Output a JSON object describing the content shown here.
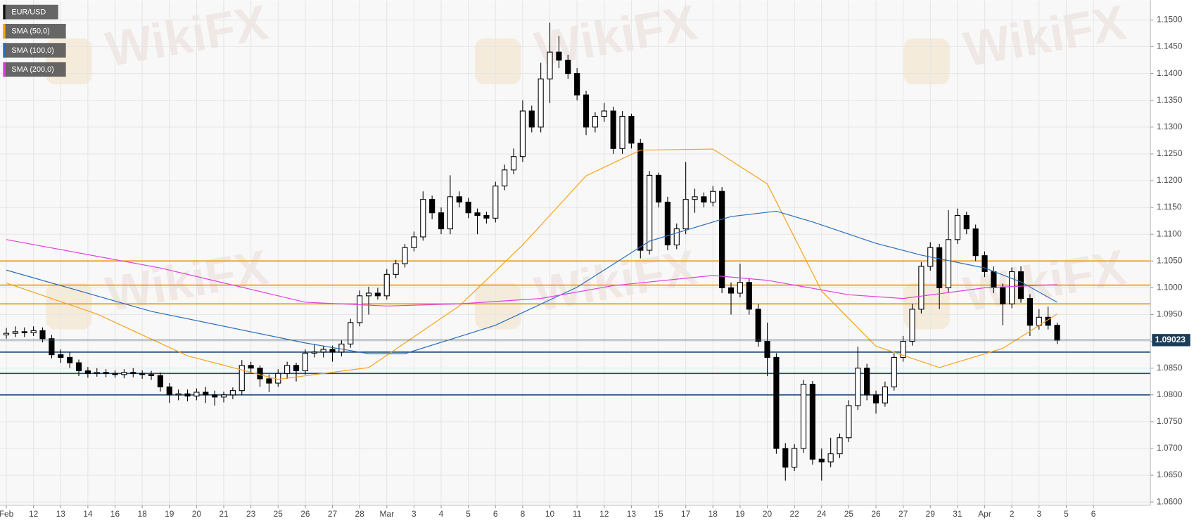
{
  "chart_data": {
    "type": "candlestick",
    "legend": "top-left",
    "grid": true,
    "watermark": "WikiFX",
    "xlim": [
      -0.7,
      126.3
    ],
    "ylim": [
      1.0594,
      1.1537
    ],
    "xticks": [
      {
        "value": 0,
        "label": "Feb"
      },
      {
        "value": 3,
        "label": "12"
      },
      {
        "value": 6,
        "label": "13"
      },
      {
        "value": 9,
        "label": "14"
      },
      {
        "value": 12,
        "label": "16"
      },
      {
        "value": 15,
        "label": "18"
      },
      {
        "value": 18,
        "label": "19"
      },
      {
        "value": 21,
        "label": "20"
      },
      {
        "value": 24,
        "label": "21"
      },
      {
        "value": 27,
        "label": "23"
      },
      {
        "value": 30,
        "label": "25"
      },
      {
        "value": 33,
        "label": "26"
      },
      {
        "value": 36,
        "label": "27"
      },
      {
        "value": 39,
        "label": "28"
      },
      {
        "value": 42,
        "label": "Mar"
      },
      {
        "value": 45,
        "label": "3"
      },
      {
        "value": 48,
        "label": "4"
      },
      {
        "value": 51,
        "label": "5"
      },
      {
        "value": 54,
        "label": "6"
      },
      {
        "value": 57,
        "label": "8"
      },
      {
        "value": 60,
        "label": "10"
      },
      {
        "value": 63,
        "label": "11"
      },
      {
        "value": 66,
        "label": "12"
      },
      {
        "value": 69,
        "label": "13"
      },
      {
        "value": 72,
        "label": "15"
      },
      {
        "value": 75,
        "label": "17"
      },
      {
        "value": 78,
        "label": "18"
      },
      {
        "value": 81,
        "label": "19"
      },
      {
        "value": 84,
        "label": "20"
      },
      {
        "value": 87,
        "label": "22"
      },
      {
        "value": 90,
        "label": "24"
      },
      {
        "value": 93,
        "label": "25"
      },
      {
        "value": 96,
        "label": "26"
      },
      {
        "value": 99,
        "label": "27"
      },
      {
        "value": 102,
        "label": "29"
      },
      {
        "value": 105,
        "label": "31"
      },
      {
        "value": 108,
        "label": "Apr"
      },
      {
        "value": 111,
        "label": "2"
      },
      {
        "value": 114,
        "label": "3"
      },
      {
        "value": 117,
        "label": "5"
      },
      {
        "value": 120,
        "label": "6"
      }
    ],
    "yticks": [
      {
        "value": 1.06,
        "label": "1.0600"
      },
      {
        "value": 1.065,
        "label": "1.0650"
      },
      {
        "value": 1.07,
        "label": "1.0700"
      },
      {
        "value": 1.075,
        "label": "1.0750"
      },
      {
        "value": 1.08,
        "label": "1.0800"
      },
      {
        "value": 1.085,
        "label": "1.0850"
      },
      {
        "value": 1.09,
        "label": "1.0900"
      },
      {
        "value": 1.095,
        "label": "1.0950"
      },
      {
        "value": 1.1,
        "label": "1.1000"
      },
      {
        "value": 1.105,
        "label": "1.1050"
      },
      {
        "value": 1.11,
        "label": "1.1100"
      },
      {
        "value": 1.115,
        "label": "1.1150"
      },
      {
        "value": 1.12,
        "label": "1.1200"
      },
      {
        "value": 1.125,
        "label": "1.1250"
      },
      {
        "value": 1.13,
        "label": "1.1300"
      },
      {
        "value": 1.135,
        "label": "1.1350"
      },
      {
        "value": 1.14,
        "label": "1.1400"
      },
      {
        "value": 1.145,
        "label": "1.1450"
      },
      {
        "value": 1.15,
        "label": "1.1500"
      }
    ],
    "last_price": 1.09023,
    "hlines": [
      {
        "value": 1.105,
        "color": "#f39c12"
      },
      {
        "value": 1.1005,
        "color": "#f39c12"
      },
      {
        "value": 1.097,
        "color": "#f39c12"
      },
      {
        "value": 1.088,
        "color": "#1f4e79"
      },
      {
        "value": 1.084,
        "color": "#1f4e79"
      },
      {
        "value": 1.08,
        "color": "#1f4e79"
      }
    ],
    "series": [
      {
        "name": "EUR/USD",
        "type": "candlestick",
        "color": "#000000",
        "open": [
          1.0912,
          1.0915,
          1.0918,
          1.0916,
          1.092,
          1.0905,
          1.0875,
          1.087,
          1.086,
          1.0845,
          1.084,
          1.0842,
          1.084,
          1.0838,
          1.0842,
          1.084,
          1.0838,
          1.0836,
          1.0815,
          1.08,
          1.0802,
          1.0798,
          1.0805,
          1.08,
          1.0796,
          1.08,
          1.0808,
          1.0855,
          1.085,
          1.083,
          1.0822,
          1.084,
          1.0855,
          1.0845,
          1.0878,
          1.088,
          1.0885,
          1.088,
          1.0895,
          1.0935,
          1.0985,
          1.099,
          1.0985,
          1.1025,
          1.1045,
          1.1075,
          1.1095,
          1.1165,
          1.114,
          1.111,
          1.117,
          1.116,
          1.114,
          1.1135,
          1.113,
          1.119,
          1.122,
          1.1245,
          1.133,
          1.13,
          1.139,
          1.144,
          1.1425,
          1.14,
          1.136,
          1.13,
          1.132,
          1.133,
          1.126,
          1.132,
          1.127,
          1.107,
          1.121,
          1.116,
          1.108,
          1.111,
          1.1165,
          1.117,
          1.116,
          1.118,
          1.1,
          1.099,
          1.101,
          1.096,
          1.09,
          1.087,
          1.07,
          1.0665,
          1.07,
          1.082,
          1.068,
          1.0675,
          1.069,
          1.072,
          1.078,
          1.085,
          1.08,
          1.0785,
          1.0815,
          1.087,
          1.09,
          1.096,
          1.104,
          1.1075,
          1.1,
          1.109,
          1.1135,
          1.111,
          1.106,
          1.103,
          1.1,
          1.097,
          1.103,
          1.098,
          1.093,
          1.0945,
          1.093
        ],
        "high": [
          1.0925,
          1.0928,
          1.0926,
          1.0928,
          1.0926,
          1.0912,
          1.0885,
          1.088,
          1.0866,
          1.0852,
          1.085,
          1.0848,
          1.0846,
          1.0848,
          1.085,
          1.0846,
          1.0845,
          1.0842,
          1.0822,
          1.081,
          1.081,
          1.0812,
          1.0815,
          1.0808,
          1.0806,
          1.0814,
          1.0865,
          1.0862,
          1.0855,
          1.0838,
          1.0848,
          1.0862,
          1.086,
          1.0885,
          1.0895,
          1.0892,
          1.0892,
          1.0902,
          1.0942,
          1.0995,
          1.1002,
          1.1,
          1.1035,
          1.1052,
          1.1082,
          1.1105,
          1.118,
          1.1172,
          1.115,
          1.121,
          1.118,
          1.1168,
          1.1148,
          1.1142,
          1.1198,
          1.123,
          1.126,
          1.135,
          1.134,
          1.142,
          1.1495,
          1.147,
          1.1435,
          1.141,
          1.1368,
          1.1328,
          1.1345,
          1.1338,
          1.133,
          1.1325,
          1.1278,
          1.1218,
          1.1215,
          1.117,
          1.112,
          1.1235,
          1.1185,
          1.1178,
          1.119,
          1.1188,
          1.101,
          1.1045,
          1.1018,
          1.097,
          1.0935,
          1.0878,
          1.071,
          1.0708,
          1.0828,
          1.0826,
          1.07,
          1.072,
          1.0728,
          1.079,
          1.089,
          1.0858,
          1.0808,
          1.0825,
          1.0878,
          1.091,
          1.097,
          1.1048,
          1.1085,
          1.1082,
          1.1145,
          1.1148,
          1.1142,
          1.1118,
          1.1068,
          1.104,
          1.1008,
          1.1038,
          1.104,
          1.0988,
          1.096,
          1.0965,
          1.0935
        ],
        "low": [
          1.0905,
          1.0908,
          1.0908,
          1.091,
          1.0898,
          1.0868,
          1.086,
          1.085,
          1.0835,
          1.0832,
          1.0834,
          1.0833,
          1.0832,
          1.0831,
          1.0833,
          1.083,
          1.0828,
          1.0806,
          1.0785,
          1.079,
          1.0788,
          1.079,
          1.0785,
          1.078,
          1.0786,
          1.0792,
          1.08,
          1.084,
          1.0815,
          1.0805,
          1.0815,
          1.083,
          1.0825,
          1.0838,
          1.087,
          1.087,
          1.0862,
          1.0872,
          1.0888,
          1.0928,
          1.095,
          1.0978,
          1.0978,
          1.1018,
          1.1038,
          1.1068,
          1.1088,
          1.1128,
          1.11,
          1.11,
          1.115,
          1.113,
          1.11,
          1.112,
          1.1122,
          1.1182,
          1.1212,
          1.1235,
          1.129,
          1.129,
          1.1345,
          1.141,
          1.139,
          1.135,
          1.1285,
          1.129,
          1.131,
          1.125,
          1.125,
          1.126,
          1.1055,
          1.1062,
          1.115,
          1.107,
          1.1072,
          1.11,
          1.114,
          1.115,
          1.1152,
          1.099,
          1.095,
          1.0982,
          1.095,
          1.089,
          1.0835,
          1.069,
          1.064,
          1.0658,
          1.0692,
          1.067,
          1.064,
          1.0665,
          1.0682,
          1.0712,
          1.0772,
          1.079,
          1.0765,
          1.0778,
          1.0808,
          1.0862,
          1.0892,
          1.0952,
          1.1032,
          1.096,
          1.0992,
          1.1082,
          1.11,
          1.105,
          1.102,
          1.099,
          1.093,
          1.0962,
          1.0972,
          1.091,
          1.0922,
          1.0922,
          1.0895
        ],
        "close": [
          1.0915,
          1.0918,
          1.0916,
          1.092,
          1.0905,
          1.0875,
          1.087,
          1.086,
          1.0845,
          1.084,
          1.0842,
          1.084,
          1.0838,
          1.0842,
          1.084,
          1.0838,
          1.0836,
          1.0815,
          1.08,
          1.0802,
          1.0798,
          1.0805,
          1.08,
          1.0796,
          1.08,
          1.0808,
          1.0855,
          1.085,
          1.083,
          1.0822,
          1.084,
          1.0855,
          1.0845,
          1.0878,
          1.088,
          1.0885,
          1.088,
          1.0895,
          1.0935,
          1.0985,
          1.099,
          1.0985,
          1.1025,
          1.1045,
          1.1075,
          1.1095,
          1.1165,
          1.114,
          1.111,
          1.117,
          1.116,
          1.114,
          1.1135,
          1.113,
          1.119,
          1.122,
          1.1245,
          1.133,
          1.13,
          1.139,
          1.144,
          1.1425,
          1.14,
          1.136,
          1.13,
          1.132,
          1.133,
          1.126,
          1.132,
          1.127,
          1.107,
          1.121,
          1.116,
          1.108,
          1.111,
          1.1165,
          1.117,
          1.116,
          1.118,
          1.1,
          1.099,
          1.101,
          1.096,
          1.09,
          1.087,
          1.07,
          1.0665,
          1.07,
          1.082,
          1.068,
          1.0675,
          1.069,
          1.072,
          1.078,
          1.085,
          1.08,
          1.0785,
          1.0815,
          1.087,
          1.09,
          1.096,
          1.104,
          1.1075,
          1.1,
          1.109,
          1.1135,
          1.111,
          1.106,
          1.103,
          1.1,
          1.097,
          1.103,
          1.098,
          1.093,
          1.0945,
          1.093,
          1.0902
        ]
      },
      {
        "name": "SMA (50,0)",
        "type": "line",
        "color": "#f7a21b",
        "x": [
          0,
          10,
          20,
          30,
          40,
          50,
          57,
          64,
          70,
          78,
          84,
          90,
          96,
          103,
          110,
          116
        ],
        "values": [
          1.1009,
          1.0951,
          1.0873,
          1.0829,
          1.0851,
          1.0966,
          1.108,
          1.1209,
          1.1257,
          1.1259,
          1.1194,
          1.0994,
          1.0891,
          1.0851,
          1.0887,
          1.0951
        ]
      },
      {
        "name": "SMA (100,0)",
        "type": "line",
        "color": "#2a6ebb",
        "x": [
          0,
          16,
          33,
          40,
          44,
          54,
          63,
          71,
          80,
          85,
          89,
          96,
          101,
          108,
          112,
          116
        ],
        "values": [
          1.1033,
          1.0956,
          1.0897,
          1.0877,
          1.0877,
          1.093,
          1.1001,
          1.1087,
          1.1133,
          1.1143,
          1.1123,
          1.1083,
          1.1061,
          1.1037,
          1.1011,
          1.0973
        ]
      },
      {
        "name": "SMA (200,0)",
        "type": "line",
        "color": "#e040e0",
        "x": [
          0,
          17,
          33,
          42,
          50,
          59,
          67,
          78,
          84,
          93,
          99,
          108,
          116
        ],
        "values": [
          1.109,
          1.1037,
          1.0973,
          1.0966,
          1.097,
          1.098,
          1.1004,
          1.1023,
          1.1014,
          1.0987,
          1.098,
          1.1,
          1.1006
        ]
      }
    ]
  }
}
